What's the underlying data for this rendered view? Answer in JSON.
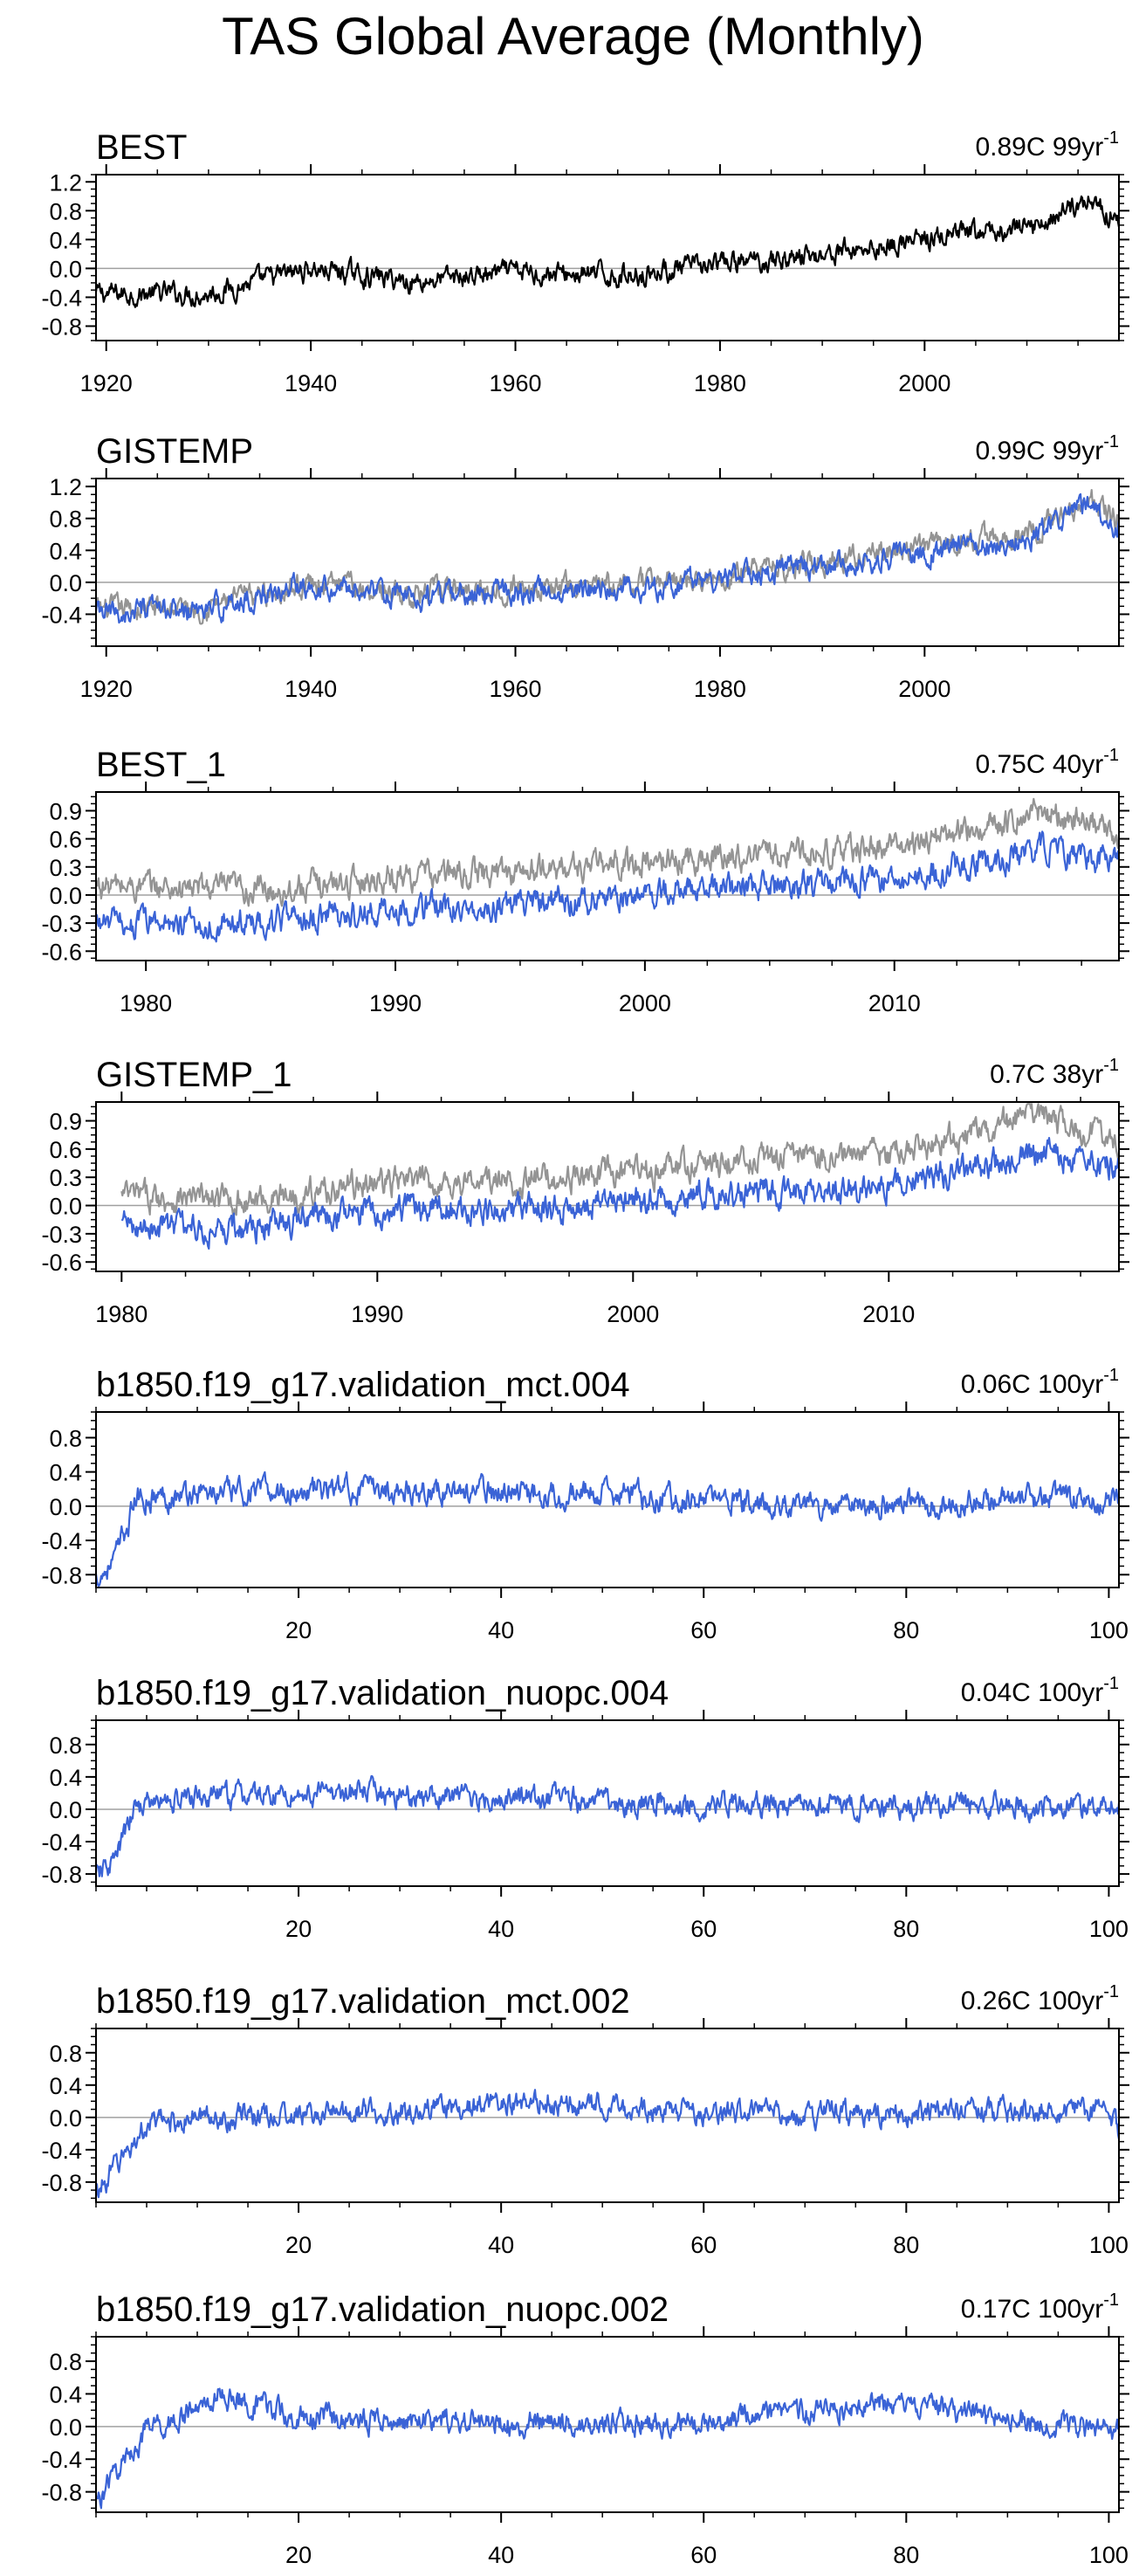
{
  "title": "TAS Global Average (Monthly)",
  "colors": {
    "model": "#3a63d6",
    "obs": "#949494",
    "black": "#000000",
    "zero": "#a0a0a0"
  },
  "chart_data": [
    {
      "type": "line",
      "title": "BEST",
      "trend": "0.89C 99yr",
      "trend_exp": "-1",
      "xlim": [
        1919,
        2019
      ],
      "ylim": [
        -1.0,
        1.3
      ],
      "xticks": [
        1920,
        1940,
        1960,
        1980,
        2000
      ],
      "yticks": [
        -0.8,
        -0.4,
        0.0,
        0.4,
        0.8,
        1.2
      ],
      "yticklabels": [
        "-0.8",
        "-0.4",
        "0.0",
        "0.4",
        "0.8",
        "1.2"
      ],
      "series": [
        {
          "color": "#000000",
          "x_start": 1919,
          "x_end": 2019,
          "anchors": [
            [
              1919,
              -0.35
            ],
            [
              1930,
              -0.35
            ],
            [
              1940,
              0.0
            ],
            [
              1950,
              -0.18
            ],
            [
              1960,
              -0.05
            ],
            [
              1970,
              -0.1
            ],
            [
              1980,
              0.05
            ],
            [
              1990,
              0.2
            ],
            [
              2000,
              0.4
            ],
            [
              2010,
              0.55
            ],
            [
              2016,
              0.95
            ],
            [
              2019,
              0.7
            ]
          ]
        }
      ]
    },
    {
      "type": "line",
      "title": "GISTEMP",
      "trend": "0.99C 99yr",
      "trend_exp": "-1",
      "xlim": [
        1919,
        2019
      ],
      "ylim": [
        -0.8,
        1.3
      ],
      "xticks": [
        1920,
        1940,
        1960,
        1980,
        2000
      ],
      "yticks": [
        -0.4,
        0.0,
        0.4,
        0.8,
        1.2
      ],
      "yticklabels": [
        "-0.4",
        "0.0",
        "0.4",
        "0.8",
        "1.2"
      ],
      "series": [
        {
          "color": "#949494",
          "x_start": 1919,
          "x_end": 2019,
          "anchors": [
            [
              1919,
              -0.35
            ],
            [
              1930,
              -0.3
            ],
            [
              1940,
              0.0
            ],
            [
              1950,
              -0.15
            ],
            [
              1960,
              -0.05
            ],
            [
              1970,
              -0.05
            ],
            [
              1980,
              0.1
            ],
            [
              1990,
              0.25
            ],
            [
              2000,
              0.45
            ],
            [
              2010,
              0.6
            ],
            [
              2016,
              1.05
            ],
            [
              2019,
              0.75
            ]
          ]
        },
        {
          "color": "#3a63d6",
          "x_start": 1919,
          "x_end": 2019,
          "anchors": [
            [
              1919,
              -0.4
            ],
            [
              1930,
              -0.35
            ],
            [
              1940,
              0.0
            ],
            [
              1950,
              -0.2
            ],
            [
              1960,
              -0.1
            ],
            [
              1970,
              -0.1
            ],
            [
              1980,
              0.05
            ],
            [
              1990,
              0.2
            ],
            [
              2000,
              0.38
            ],
            [
              2010,
              0.55
            ],
            [
              2016,
              1.0
            ],
            [
              2019,
              0.68
            ]
          ]
        }
      ]
    },
    {
      "type": "line",
      "title": "BEST_1",
      "trend": "0.75C 40yr",
      "trend_exp": "-1",
      "xlim": [
        1978,
        2019
      ],
      "ylim": [
        -0.7,
        1.1
      ],
      "xticks": [
        1980,
        1990,
        2000,
        2010
      ],
      "yticks": [
        -0.6,
        -0.3,
        0.0,
        0.3,
        0.6,
        0.9
      ],
      "yticklabels": [
        "-0.6",
        "-0.3",
        "0.0",
        "0.3",
        "0.6",
        "0.9"
      ],
      "series": [
        {
          "color": "#949494",
          "x_start": 1978,
          "x_end": 2019,
          "anchors": [
            [
              1978,
              0.1
            ],
            [
              1985,
              0.05
            ],
            [
              1990,
              0.2
            ],
            [
              1995,
              0.25
            ],
            [
              2000,
              0.35
            ],
            [
              2005,
              0.45
            ],
            [
              2010,
              0.5
            ],
            [
              2016,
              0.9
            ],
            [
              2019,
              0.65
            ]
          ]
        },
        {
          "color": "#3a63d6",
          "x_start": 1978,
          "x_end": 2019,
          "anchors": [
            [
              1978,
              -0.3
            ],
            [
              1985,
              -0.3
            ],
            [
              1990,
              -0.15
            ],
            [
              1995,
              -0.1
            ],
            [
              2000,
              0.0
            ],
            [
              2005,
              0.1
            ],
            [
              2010,
              0.15
            ],
            [
              2016,
              0.5
            ],
            [
              2019,
              0.35
            ]
          ]
        }
      ]
    },
    {
      "type": "line",
      "title": "GISTEMP_1",
      "trend": "0.7C 38yr",
      "trend_exp": "-1",
      "xlim": [
        1979,
        2019
      ],
      "ylim": [
        -0.7,
        1.1
      ],
      "xticks": [
        1980,
        1990,
        2000,
        2010
      ],
      "yticks": [
        -0.6,
        -0.3,
        0.0,
        0.3,
        0.6,
        0.9
      ],
      "yticklabels": [
        "-0.6",
        "-0.3",
        "0.0",
        "0.3",
        "0.6",
        "0.9"
      ],
      "series": [
        {
          "color": "#949494",
          "x_start": 1980,
          "x_end": 2019,
          "anchors": [
            [
              1980,
              0.1
            ],
            [
              1985,
              0.05
            ],
            [
              1990,
              0.25
            ],
            [
              1995,
              0.25
            ],
            [
              2000,
              0.35
            ],
            [
              2005,
              0.5
            ],
            [
              2010,
              0.55
            ],
            [
              2016,
              0.95
            ],
            [
              2019,
              0.65
            ]
          ]
        },
        {
          "color": "#3a63d6",
          "x_start": 1980,
          "x_end": 2019,
          "anchors": [
            [
              1980,
              -0.2
            ],
            [
              1985,
              -0.25
            ],
            [
              1990,
              -0.05
            ],
            [
              1995,
              -0.05
            ],
            [
              2000,
              0.05
            ],
            [
              2005,
              0.15
            ],
            [
              2010,
              0.2
            ],
            [
              2016,
              0.55
            ],
            [
              2019,
              0.4
            ]
          ]
        }
      ]
    },
    {
      "type": "line",
      "title": "b1850.f19_g17.validation_mct.004",
      "trend": "0.06C 100yr",
      "trend_exp": "-1",
      "xlim": [
        0,
        101
      ],
      "ylim": [
        -0.95,
        1.1
      ],
      "xticks": [
        20,
        40,
        60,
        80,
        100
      ],
      "yticks": [
        -0.8,
        -0.4,
        0.0,
        0.4,
        0.8
      ],
      "yticklabels": [
        "-0.8",
        "-0.4",
        "0.0",
        "0.4",
        "0.8"
      ],
      "series": [
        {
          "color": "#3a63d6",
          "x_start": 0,
          "x_end": 101,
          "anchors": [
            [
              0,
              -0.85
            ],
            [
              2,
              -0.6
            ],
            [
              4,
              0.1
            ],
            [
              10,
              0.15
            ],
            [
              25,
              0.2
            ],
            [
              50,
              0.15
            ],
            [
              70,
              0.0
            ],
            [
              85,
              0.05
            ],
            [
              101,
              0.1
            ]
          ]
        }
      ]
    },
    {
      "type": "line",
      "title": "b1850.f19_g17.validation_nuopc.004",
      "trend": "0.04C 100yr",
      "trend_exp": "-1",
      "xlim": [
        0,
        101
      ],
      "ylim": [
        -0.95,
        1.1
      ],
      "xticks": [
        20,
        40,
        60,
        80,
        100
      ],
      "yticks": [
        -0.8,
        -0.4,
        0.0,
        0.4,
        0.8
      ],
      "yticklabels": [
        "-0.8",
        "-0.4",
        "0.0",
        "0.4",
        "0.8"
      ],
      "series": [
        {
          "color": "#3a63d6",
          "x_start": 0,
          "x_end": 101,
          "anchors": [
            [
              0,
              -0.85
            ],
            [
              2,
              -0.6
            ],
            [
              4,
              0.05
            ],
            [
              10,
              0.15
            ],
            [
              25,
              0.2
            ],
            [
              50,
              0.1
            ],
            [
              70,
              0.05
            ],
            [
              85,
              0.05
            ],
            [
              101,
              0.05
            ]
          ]
        }
      ]
    },
    {
      "type": "line",
      "title": "b1850.f19_g17.validation_mct.002",
      "trend": "0.26C 100yr",
      "trend_exp": "-1",
      "xlim": [
        0,
        101
      ],
      "ylim": [
        -1.05,
        1.1
      ],
      "xticks": [
        20,
        40,
        60,
        80,
        100
      ],
      "yticks": [
        -0.8,
        -0.4,
        0.0,
        0.4,
        0.8
      ],
      "yticklabels": [
        "-0.8",
        "-0.4",
        "0.0",
        "0.4",
        "0.8"
      ],
      "series": [
        {
          "color": "#3a63d6",
          "x_start": 0,
          "x_end": 101,
          "anchors": [
            [
              0,
              -0.95
            ],
            [
              2,
              -0.6
            ],
            [
              5,
              -0.1
            ],
            [
              10,
              0.0
            ],
            [
              25,
              0.05
            ],
            [
              45,
              0.2
            ],
            [
              60,
              0.05
            ],
            [
              80,
              0.05
            ],
            [
              100,
              0.1
            ],
            [
              101,
              -0.2
            ]
          ]
        }
      ]
    },
    {
      "type": "line",
      "title": "b1850.f19_g17.validation_nuopc.002",
      "trend": "0.17C 100yr",
      "trend_exp": "-1",
      "xlim": [
        0,
        101
      ],
      "ylim": [
        -1.05,
        1.1
      ],
      "xticks": [
        20,
        40,
        60,
        80,
        100
      ],
      "yticks": [
        -0.8,
        -0.4,
        0.0,
        0.4,
        0.8
      ],
      "yticklabels": [
        "-0.8",
        "-0.4",
        "0.0",
        "0.4",
        "0.8"
      ],
      "series": [
        {
          "color": "#3a63d6",
          "x_start": 0,
          "x_end": 101,
          "anchors": [
            [
              0,
              -0.95
            ],
            [
              2,
              -0.55
            ],
            [
              5,
              -0.05
            ],
            [
              10,
              0.2
            ],
            [
              12,
              0.4
            ],
            [
              20,
              0.1
            ],
            [
              40,
              0.05
            ],
            [
              60,
              0.05
            ],
            [
              77,
              0.3
            ],
            [
              90,
              0.1
            ],
            [
              101,
              0.0
            ]
          ]
        }
      ]
    }
  ]
}
